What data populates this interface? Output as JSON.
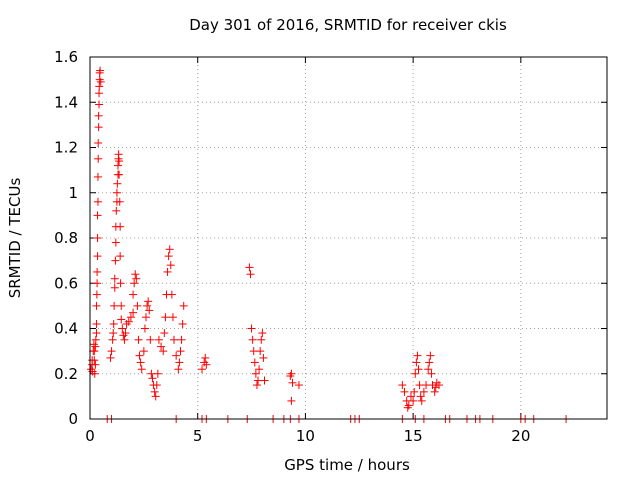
{
  "chart_data": {
    "type": "scatter",
    "title": "Day 301 of 2016, SRMTID for receiver ckis",
    "xlabel": "GPS time / hours",
    "ylabel": "SRMTID / TECUs",
    "xlim": [
      0,
      24
    ],
    "ylim": [
      0,
      1.6
    ],
    "grid": true,
    "marker": "+",
    "color": "#ff0000",
    "x_ticks": [
      0,
      5,
      10,
      15,
      20
    ],
    "x_tick_labels": [
      "0",
      "5",
      "10",
      "15",
      "20"
    ],
    "y_ticks": [
      0,
      0.2,
      0.4,
      0.6,
      0.8,
      1,
      1.2,
      1.4,
      1.6
    ],
    "y_tick_labels": [
      "0",
      "0.2",
      "0.4",
      "0.6",
      "0.8",
      "1",
      "1.2",
      "1.4",
      "1.6"
    ],
    "series": [
      {
        "name": "SRMTID",
        "points": [
          [
            0.05,
            0.22
          ],
          [
            0.1,
            0.24
          ],
          [
            0.12,
            0.21
          ],
          [
            0.15,
            0.3
          ],
          [
            0.18,
            0.33
          ],
          [
            0.2,
            0.26
          ],
          [
            0.22,
            0.2
          ],
          [
            0.25,
            0.32
          ],
          [
            0.27,
            0.35
          ],
          [
            0.3,
            0.38
          ],
          [
            0.3,
            0.42
          ],
          [
            0.3,
            0.5
          ],
          [
            0.32,
            0.55
          ],
          [
            0.33,
            0.6
          ],
          [
            0.33,
            0.65
          ],
          [
            0.35,
            0.72
          ],
          [
            0.35,
            0.8
          ],
          [
            0.35,
            0.9
          ],
          [
            0.37,
            0.96
          ],
          [
            0.37,
            1.07
          ],
          [
            0.38,
            1.15
          ],
          [
            0.38,
            1.22
          ],
          [
            0.4,
            1.29
          ],
          [
            0.4,
            1.34
          ],
          [
            0.42,
            1.39
          ],
          [
            0.42,
            1.44
          ],
          [
            0.43,
            1.47
          ],
          [
            0.45,
            1.5
          ],
          [
            0.45,
            1.53
          ],
          [
            0.47,
            1.54
          ],
          [
            0.5,
            1.49
          ],
          [
            0.1,
            0.26
          ],
          [
            0.2,
            0.3
          ],
          [
            0.25,
            0.24
          ],
          [
            0.95,
            0.27
          ],
          [
            1.0,
            0.3
          ],
          [
            1.05,
            0.35
          ],
          [
            1.08,
            0.38
          ],
          [
            1.1,
            0.42
          ],
          [
            1.12,
            0.5
          ],
          [
            1.15,
            0.58
          ],
          [
            1.15,
            0.62
          ],
          [
            1.18,
            0.7
          ],
          [
            1.2,
            0.78
          ],
          [
            1.2,
            0.85
          ],
          [
            1.22,
            0.92
          ],
          [
            1.25,
            0.96
          ],
          [
            1.25,
            1.0
          ],
          [
            1.27,
            1.04
          ],
          [
            1.3,
            1.08
          ],
          [
            1.3,
            1.12
          ],
          [
            1.32,
            1.15
          ],
          [
            1.33,
            1.17
          ],
          [
            1.35,
            1.14
          ],
          [
            1.35,
            1.08
          ],
          [
            1.38,
            0.96
          ],
          [
            1.4,
            0.85
          ],
          [
            1.4,
            0.72
          ],
          [
            1.42,
            0.6
          ],
          [
            1.45,
            0.5
          ],
          [
            1.45,
            0.44
          ],
          [
            1.5,
            0.4
          ],
          [
            1.55,
            0.37
          ],
          [
            1.6,
            0.35
          ],
          [
            1.65,
            0.38
          ],
          [
            1.7,
            0.42
          ],
          [
            1.8,
            0.43
          ],
          [
            1.9,
            0.45
          ],
          [
            2.0,
            0.47
          ],
          [
            2.0,
            0.55
          ],
          [
            2.05,
            0.6
          ],
          [
            2.1,
            0.64
          ],
          [
            2.15,
            0.62
          ],
          [
            2.2,
            0.5
          ],
          [
            2.25,
            0.35
          ],
          [
            2.3,
            0.28
          ],
          [
            2.35,
            0.25
          ],
          [
            2.4,
            0.22
          ],
          [
            2.5,
            0.3
          ],
          [
            2.55,
            0.4
          ],
          [
            2.6,
            0.45
          ],
          [
            2.65,
            0.5
          ],
          [
            2.7,
            0.52
          ],
          [
            2.75,
            0.48
          ],
          [
            2.8,
            0.35
          ],
          [
            2.85,
            0.2
          ],
          [
            2.9,
            0.18
          ],
          [
            2.95,
            0.15
          ],
          [
            3.0,
            0.12
          ],
          [
            3.05,
            0.1
          ],
          [
            3.1,
            0.15
          ],
          [
            3.15,
            0.2
          ],
          [
            3.2,
            0.35
          ],
          [
            3.3,
            0.32
          ],
          [
            3.4,
            0.3
          ],
          [
            3.45,
            0.38
          ],
          [
            3.5,
            0.45
          ],
          [
            3.55,
            0.55
          ],
          [
            3.6,
            0.65
          ],
          [
            3.65,
            0.72
          ],
          [
            3.7,
            0.75
          ],
          [
            3.75,
            0.68
          ],
          [
            3.8,
            0.55
          ],
          [
            3.85,
            0.45
          ],
          [
            3.9,
            0.35
          ],
          [
            4.0,
            0.28
          ],
          [
            4.1,
            0.22
          ],
          [
            4.15,
            0.25
          ],
          [
            4.2,
            0.3
          ],
          [
            4.25,
            0.35
          ],
          [
            4.3,
            0.42
          ],
          [
            4.35,
            0.5
          ],
          [
            5.2,
            0.22
          ],
          [
            5.3,
            0.25
          ],
          [
            5.35,
            0.27
          ],
          [
            5.4,
            0.24
          ],
          [
            7.4,
            0.67
          ],
          [
            7.45,
            0.64
          ],
          [
            7.5,
            0.4
          ],
          [
            7.55,
            0.35
          ],
          [
            7.6,
            0.3
          ],
          [
            7.65,
            0.25
          ],
          [
            7.7,
            0.2
          ],
          [
            7.75,
            0.15
          ],
          [
            7.8,
            0.17
          ],
          [
            7.85,
            0.22
          ],
          [
            7.9,
            0.3
          ],
          [
            7.95,
            0.35
          ],
          [
            8.0,
            0.38
          ],
          [
            8.05,
            0.27
          ],
          [
            8.1,
            0.17
          ],
          [
            9.3,
            0.19
          ],
          [
            9.35,
            0.2
          ],
          [
            9.4,
            0.16
          ],
          [
            9.35,
            0.08
          ],
          [
            9.7,
            0.15
          ],
          [
            14.5,
            0.15
          ],
          [
            14.6,
            0.12
          ],
          [
            14.7,
            0.08
          ],
          [
            14.75,
            0.05
          ],
          [
            14.8,
            0.06
          ],
          [
            14.9,
            0.1
          ],
          [
            15.0,
            0.08
          ],
          [
            15.05,
            0.12
          ],
          [
            15.1,
            0.2
          ],
          [
            15.15,
            0.25
          ],
          [
            15.2,
            0.28
          ],
          [
            15.25,
            0.22
          ],
          [
            15.3,
            0.15
          ],
          [
            15.35,
            0.1
          ],
          [
            15.4,
            0.08
          ],
          [
            15.5,
            0.12
          ],
          [
            15.6,
            0.15
          ],
          [
            15.7,
            0.22
          ],
          [
            15.75,
            0.25
          ],
          [
            15.8,
            0.28
          ],
          [
            15.85,
            0.2
          ],
          [
            15.9,
            0.15
          ],
          [
            16.0,
            0.12
          ],
          [
            16.05,
            0.14
          ],
          [
            16.1,
            0.16
          ],
          [
            16.2,
            0.15
          ],
          [
            0.8,
            0
          ],
          [
            1.0,
            0
          ],
          [
            4.0,
            0
          ],
          [
            5.2,
            0
          ],
          [
            5.4,
            0
          ],
          [
            6.4,
            0
          ],
          [
            7.3,
            0
          ],
          [
            8.5,
            0
          ],
          [
            9.0,
            0
          ],
          [
            9.3,
            0
          ],
          [
            9.7,
            0
          ],
          [
            12.1,
            0
          ],
          [
            12.3,
            0
          ],
          [
            12.5,
            0
          ],
          [
            14.5,
            0
          ],
          [
            15.1,
            0
          ],
          [
            15.5,
            0
          ],
          [
            16.5,
            0
          ],
          [
            16.7,
            0
          ],
          [
            17.5,
            0
          ],
          [
            17.9,
            0
          ],
          [
            18.1,
            0
          ],
          [
            18.7,
            0
          ],
          [
            20.0,
            0
          ],
          [
            20.2,
            0
          ],
          [
            20.6,
            0
          ],
          [
            22.1,
            0
          ]
        ]
      }
    ]
  }
}
